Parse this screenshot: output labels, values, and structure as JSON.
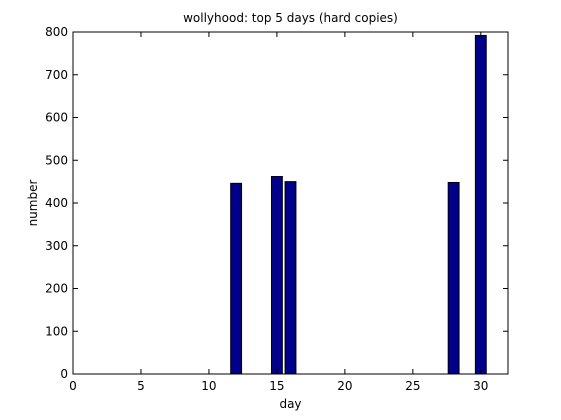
{
  "chart_data": {
    "type": "bar",
    "title": "wollyhood: top 5 days (hard copies)",
    "xlabel": "day",
    "ylabel": "number",
    "xlim": [
      0,
      32
    ],
    "ylim": [
      0,
      800
    ],
    "x_ticks": [
      0,
      5,
      10,
      15,
      20,
      25,
      30
    ],
    "y_ticks": [
      0,
      100,
      200,
      300,
      400,
      500,
      600,
      700,
      800
    ],
    "grid": false,
    "bar_color": "#00008b",
    "bar_edge_color": "#000000",
    "x": [
      12,
      15,
      16,
      28,
      30
    ],
    "values": [
      446,
      462,
      450,
      448,
      792
    ]
  }
}
